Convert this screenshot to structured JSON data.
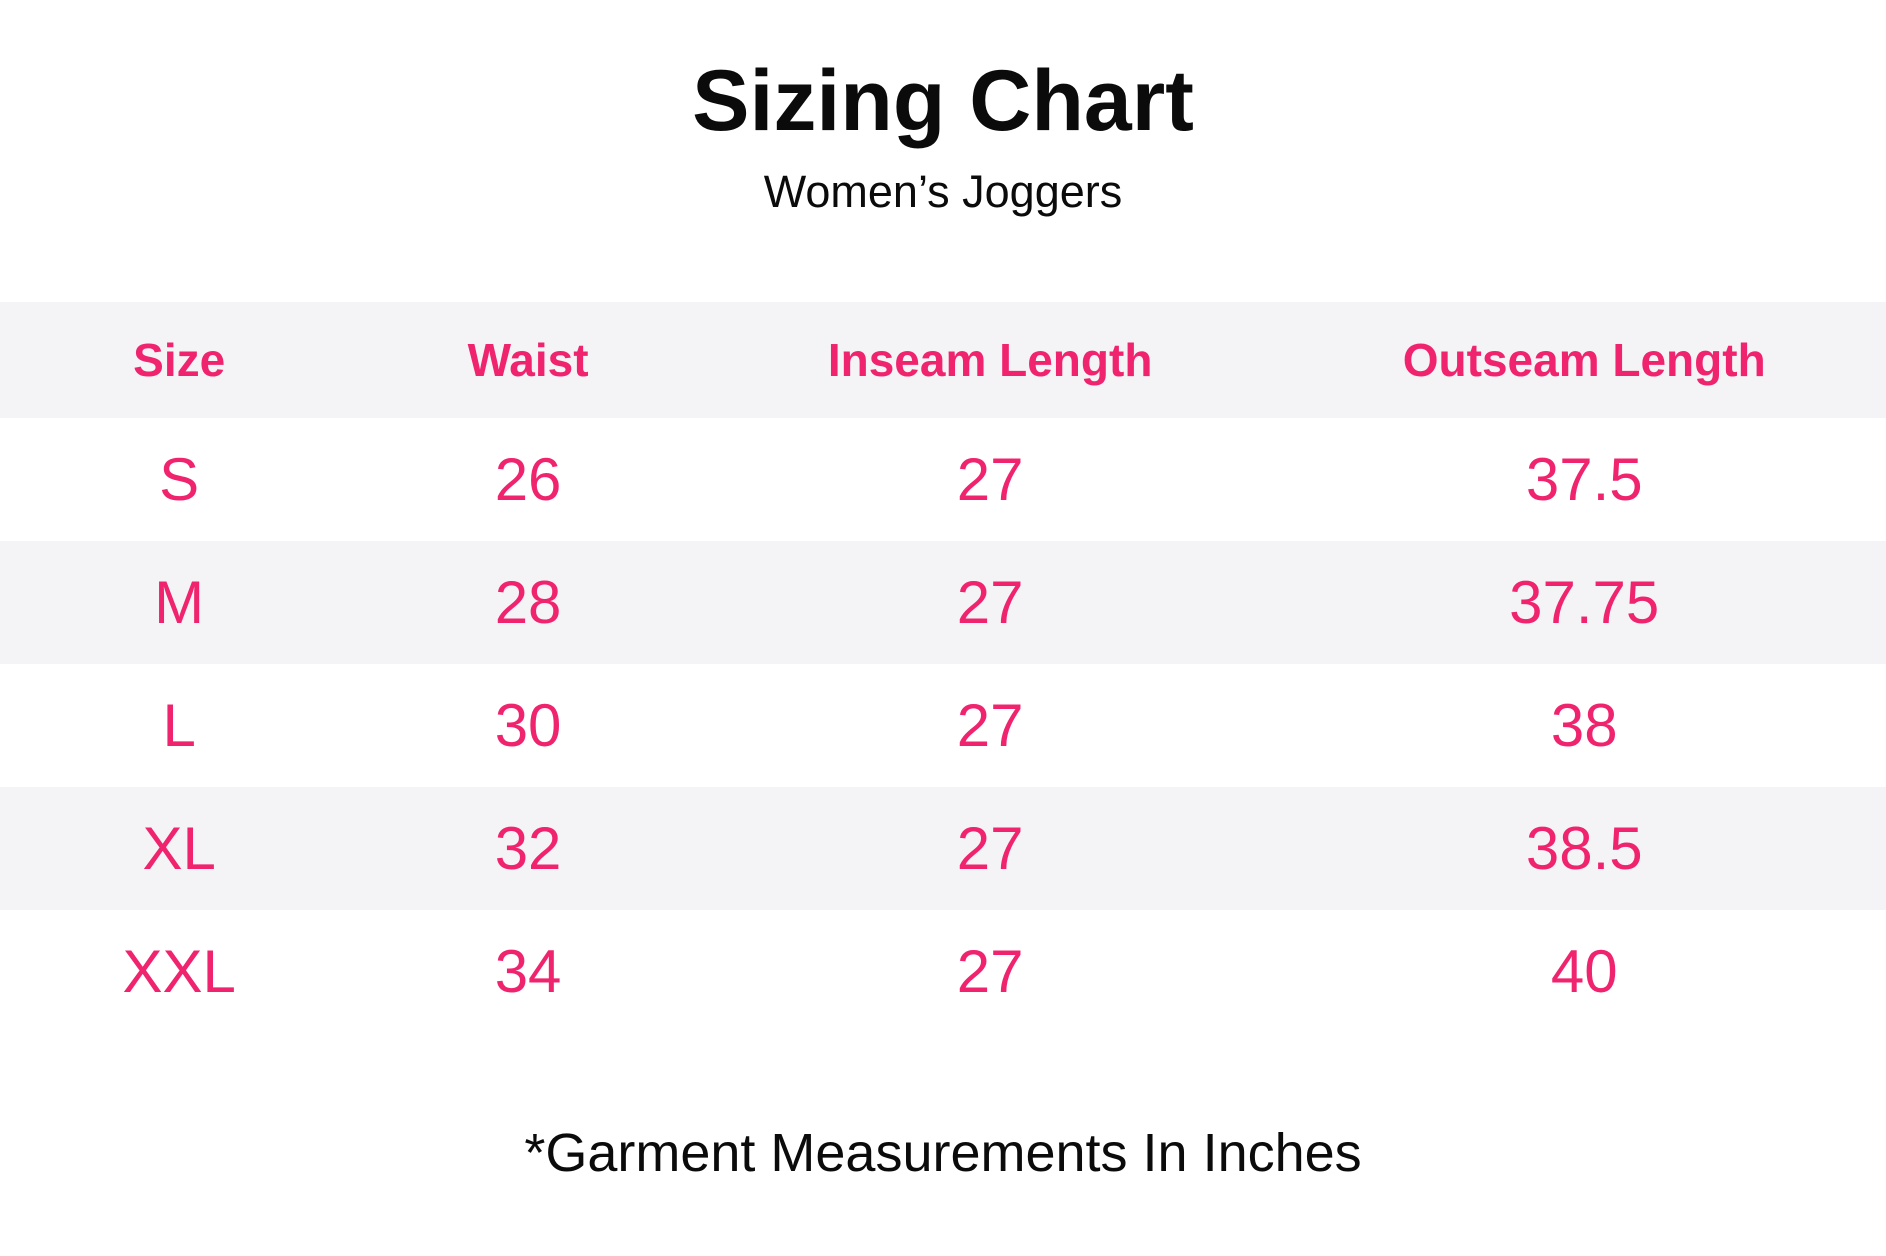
{
  "page": {
    "title": "Sizing Chart",
    "subtitle": "Women’s Joggers",
    "footnote": "*Garment Measurements In Inches"
  },
  "colors": {
    "accent_pink": "#F0246E",
    "row_alt_gray": "#F4F4F6",
    "text_black": "#0B0B0B"
  },
  "chart_data": {
    "type": "table",
    "title": "Sizing Chart",
    "subtitle": "Women’s Joggers",
    "columns": [
      "Size",
      "Waist",
      "Inseam Length",
      "Outseam Length"
    ],
    "rows": [
      [
        "S",
        "26",
        "27",
        "37.5"
      ],
      [
        "M",
        "28",
        "27",
        "37.75"
      ],
      [
        "L",
        "30",
        "27",
        "38"
      ],
      [
        "XL",
        "32",
        "27",
        "38.5"
      ],
      [
        "XXL",
        "34",
        "27",
        "40"
      ]
    ],
    "units_note": "*Garment Measurements In Inches",
    "layout": {
      "stripe_pattern": "header-gray, then alternating white/gray data rows",
      "alignment": "center"
    }
  }
}
